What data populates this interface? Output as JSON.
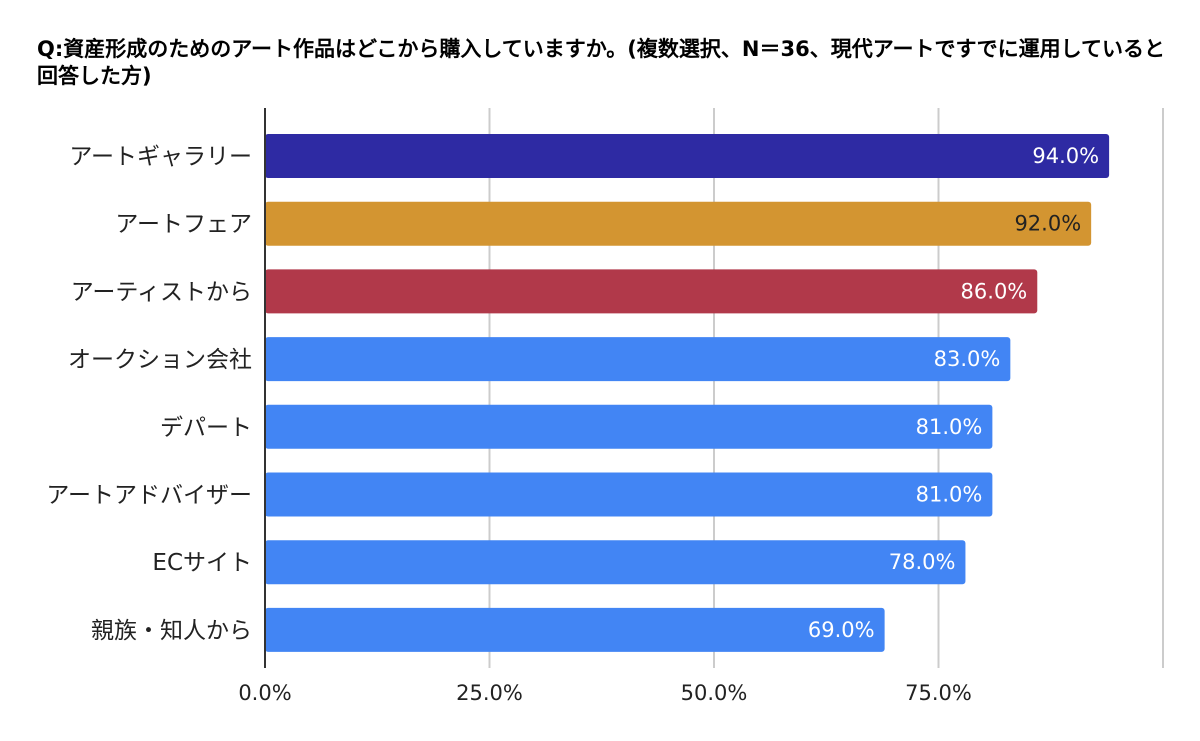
{
  "chart_data": {
    "type": "bar",
    "orientation": "horizontal",
    "title": "Q:資産形成のためのアート作品はどこから購入していますか。(複数選択、N＝36、現代アートですでに運用していると回答した方)",
    "categories": [
      "アートギャラリー",
      "アートフェア",
      "アーティストから",
      "オークション会社",
      "デパート",
      "アートアドバイザー",
      "ECサイト",
      "親族・知人から"
    ],
    "values": [
      94.0,
      92.0,
      86.0,
      83.0,
      81.0,
      81.0,
      78.0,
      69.0
    ],
    "value_labels": [
      "94.0%",
      "92.0%",
      "86.0%",
      "83.0%",
      "81.0%",
      "81.0%",
      "78.0%",
      "69.0%"
    ],
    "colors": [
      "#2e2aa3",
      "#d39531",
      "#b1394a",
      "#4285f4",
      "#4285f4",
      "#4285f4",
      "#4285f4",
      "#4285f4"
    ],
    "label_colors": [
      "#ffffff",
      "#222222",
      "#ffffff",
      "#ffffff",
      "#ffffff",
      "#ffffff",
      "#ffffff",
      "#ffffff"
    ],
    "xlim": [
      0,
      100
    ],
    "xticks": [
      0,
      25,
      50,
      75,
      100
    ],
    "xtick_labels": [
      "0.0%",
      "25.0%",
      "50.0%",
      "75.0%",
      ""
    ],
    "xlabel": "",
    "ylabel": "",
    "grid": true,
    "legend": "none"
  }
}
